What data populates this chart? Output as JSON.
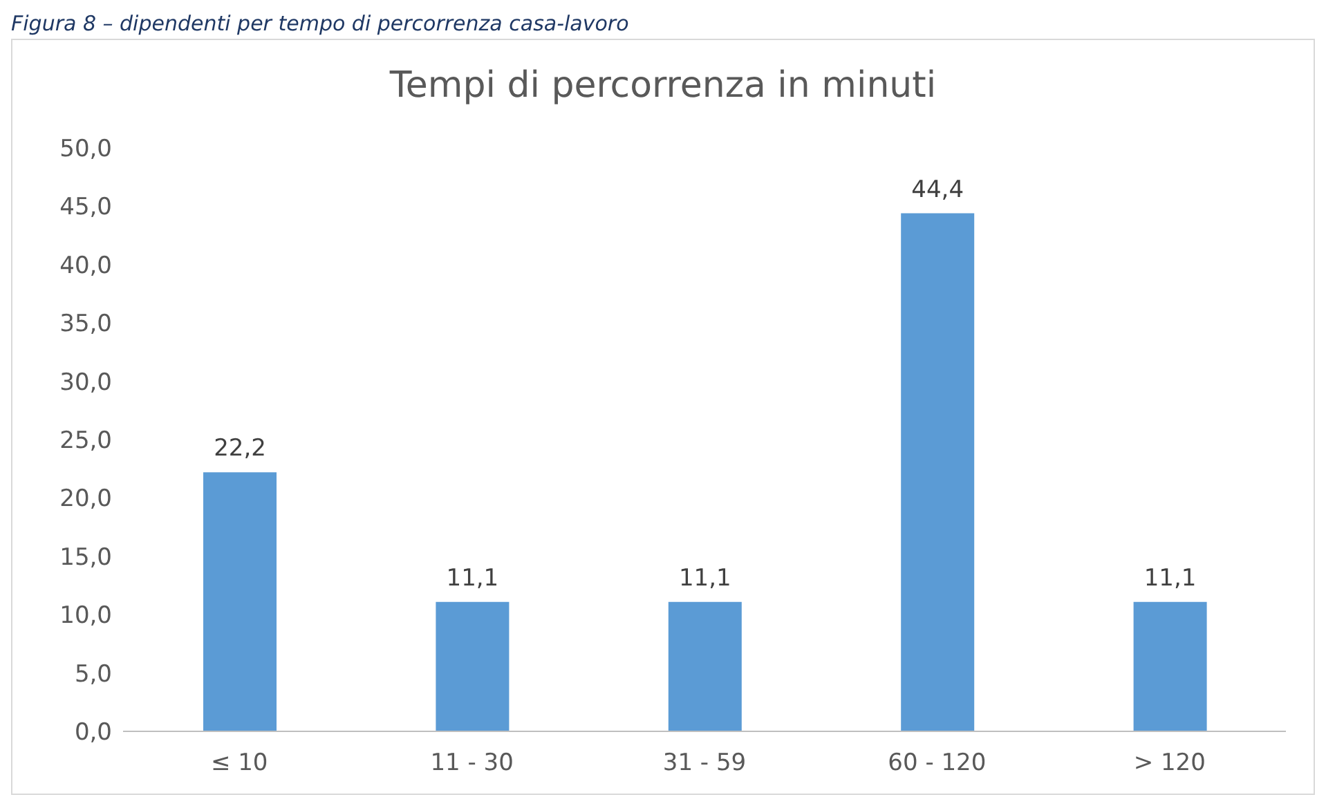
{
  "chart_data": {
    "type": "bar",
    "title": "Tempi di percorrenza in minuti",
    "annotations": [
      "Figura 8 – dipendenti per tempo di percorrenza casa-lavoro"
    ],
    "categories": [
      "≤ 10",
      "11 - 30",
      "31 - 59",
      "60 - 120",
      "> 120"
    ],
    "values": [
      22.2,
      11.1,
      11.1,
      44.4,
      11.1
    ],
    "value_labels": [
      "22,2",
      "11,1",
      "11,1",
      "44,4",
      "11,1"
    ],
    "color": "#5b9bd5",
    "ylim": [
      0,
      50
    ],
    "yticks": [
      {
        "value": 0,
        "label": "0,0"
      },
      {
        "value": 5,
        "label": "5,0"
      },
      {
        "value": 10,
        "label": "10,0"
      },
      {
        "value": 15,
        "label": "15,0"
      },
      {
        "value": 20,
        "label": "20,0"
      },
      {
        "value": 25,
        "label": "25,0"
      },
      {
        "value": 30,
        "label": "30,0"
      },
      {
        "value": 35,
        "label": "35,0"
      },
      {
        "value": 40,
        "label": "40,0"
      },
      {
        "value": 45,
        "label": "45,0"
      },
      {
        "value": 50,
        "label": "50,0"
      }
    ],
    "grid": false
  }
}
